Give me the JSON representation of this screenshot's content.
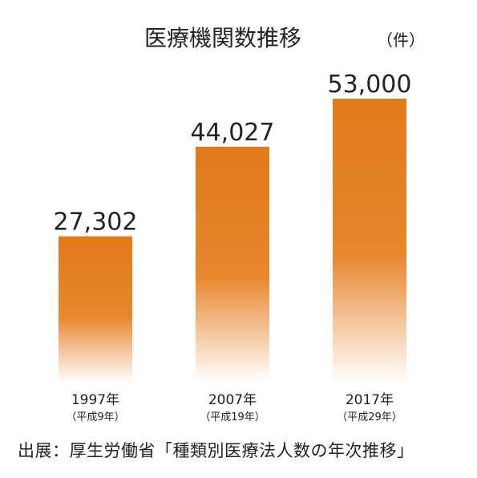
{
  "chart_data": {
    "type": "bar",
    "title": "医療機関数推移",
    "unit": "（件）",
    "categories": [
      {
        "year": "1997年",
        "era": "（平成9年）"
      },
      {
        "year": "2007年",
        "era": "（平成19年）"
      },
      {
        "year": "2017年",
        "era": "（平成29年）"
      }
    ],
    "values": [
      27302,
      44027,
      53000
    ],
    "value_labels": [
      "27,302",
      "44,027",
      "53,000"
    ],
    "ylim": [
      0,
      53000
    ],
    "grid": false,
    "legend": "none",
    "bar_color_top": "#e07a1c",
    "bar_color_bottom": "#ffffff"
  },
  "source": "出展：厚生労働省「種類別医療法人数の年次推移」"
}
